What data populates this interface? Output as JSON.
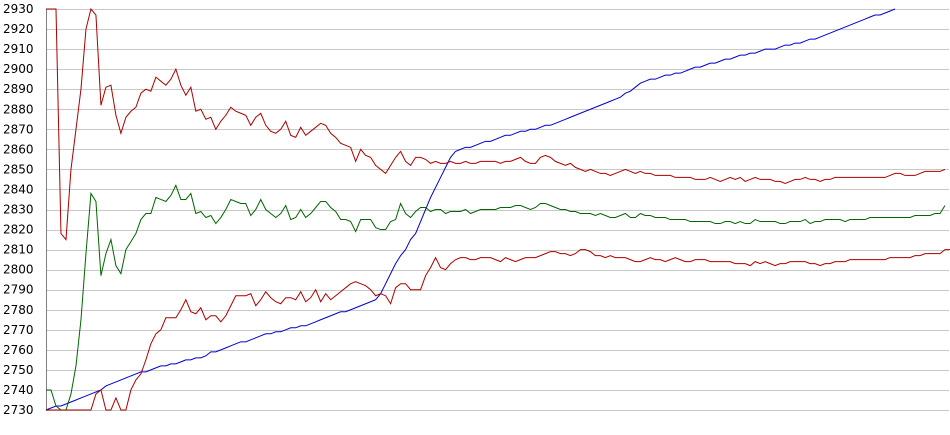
{
  "chart_data": {
    "type": "line",
    "title": "",
    "xlabel": "",
    "ylabel": "",
    "ylim": [
      2730,
      2930
    ],
    "xlim": [
      0,
      180
    ],
    "grid": true,
    "legend": "none",
    "y_ticks": [
      2730,
      2740,
      2750,
      2760,
      2770,
      2780,
      2790,
      2800,
      2810,
      2820,
      2830,
      2840,
      2850,
      2860,
      2870,
      2880,
      2890,
      2900,
      2910,
      2920,
      2930
    ],
    "series": [
      {
        "color": "#0000cc",
        "values": [
          2730,
          2731,
          2732,
          2732,
          2733,
          2734,
          2735,
          2736,
          2737,
          2738,
          2739,
          2740,
          2742,
          2743,
          2744,
          2745,
          2746,
          2747,
          2748,
          2749,
          2749,
          2750,
          2751,
          2752,
          2752,
          2753,
          2753,
          2754,
          2755,
          2755,
          2756,
          2756,
          2757,
          2759,
          2759,
          2760,
          2761,
          2762,
          2763,
          2764,
          2764,
          2765,
          2766,
          2767,
          2768,
          2768,
          2769,
          2769,
          2770,
          2771,
          2771,
          2772,
          2772,
          2773,
          2774,
          2775,
          2776,
          2777,
          2778,
          2779,
          2779,
          2780,
          2781,
          2782,
          2783,
          2784,
          2785,
          2788,
          2793,
          2798,
          2803,
          2807,
          2810,
          2815,
          2818,
          2824,
          2830,
          2836,
          2841,
          2846,
          2851,
          2856,
          2859,
          2860,
          2861,
          2861,
          2862,
          2863,
          2864,
          2864,
          2865,
          2866,
          2867,
          2867,
          2868,
          2869,
          2869,
          2870,
          2870,
          2871,
          2872,
          2872,
          2873,
          2874,
          2875,
          2876,
          2877,
          2878,
          2879,
          2880,
          2881,
          2882,
          2883,
          2884,
          2885,
          2886,
          2888,
          2889,
          2891,
          2893,
          2894,
          2895,
          2895,
          2896,
          2897,
          2897,
          2898,
          2898,
          2899,
          2900,
          2901,
          2901,
          2902,
          2903,
          2903,
          2904,
          2905,
          2905,
          2906,
          2907,
          2907,
          2908,
          2908,
          2909,
          2910,
          2910,
          2910,
          2911,
          2912,
          2912,
          2913,
          2913,
          2914,
          2915,
          2915,
          2916,
          2917,
          2918,
          2919,
          2920,
          2921,
          2922,
          2923,
          2924,
          2925,
          2926,
          2927,
          2927,
          2928,
          2929,
          2930
        ]
      },
      {
        "color": "#006600",
        "values": [
          2740,
          2740,
          2732,
          2730,
          2730,
          2738,
          2752,
          2775,
          2808,
          2838,
          2834,
          2797,
          2808,
          2815,
          2802,
          2798,
          2810,
          2814,
          2818,
          2825,
          2828,
          2828,
          2836,
          2835,
          2834,
          2837,
          2842,
          2835,
          2835,
          2838,
          2828,
          2829,
          2826,
          2827,
          2823,
          2826,
          2830,
          2835,
          2834,
          2833,
          2833,
          2827,
          2830,
          2835,
          2830,
          2828,
          2826,
          2828,
          2832,
          2825,
          2826,
          2830,
          2826,
          2828,
          2831,
          2834,
          2834,
          2831,
          2829,
          2825,
          2825,
          2824,
          2819,
          2825,
          2825,
          2825,
          2821,
          2820,
          2820,
          2824,
          2825,
          2833,
          2828,
          2826,
          2829,
          2831,
          2831,
          2829,
          2830,
          2830,
          2828,
          2829,
          2829,
          2829,
          2830,
          2828,
          2829,
          2830,
          2830,
          2830,
          2830,
          2831,
          2831,
          2831,
          2832,
          2832,
          2831,
          2830,
          2831,
          2833,
          2833,
          2832,
          2831,
          2830,
          2830,
          2829,
          2829,
          2828,
          2828,
          2828,
          2827,
          2828,
          2827,
          2826,
          2826,
          2827,
          2828,
          2826,
          2826,
          2828,
          2827,
          2827,
          2826,
          2826,
          2826,
          2825,
          2825,
          2825,
          2825,
          2824,
          2824,
          2824,
          2824,
          2824,
          2823,
          2823,
          2824,
          2824,
          2823,
          2824,
          2823,
          2823,
          2825,
          2824,
          2824,
          2824,
          2824,
          2823,
          2823,
          2824,
          2824,
          2824,
          2825,
          2823,
          2824,
          2824,
          2825,
          2825,
          2825,
          2825,
          2824,
          2825,
          2825,
          2825,
          2825,
          2826,
          2826,
          2826,
          2826,
          2826,
          2826,
          2826,
          2826,
          2826,
          2827,
          2827,
          2827,
          2827,
          2828,
          2828,
          2832
        ]
      },
      {
        "color": "#aa0000",
        "values": [
          2930,
          2930,
          2930,
          2818,
          2815,
          2850,
          2870,
          2890,
          2920,
          2930,
          2927,
          2882,
          2891,
          2892,
          2877,
          2868,
          2876,
          2879,
          2881,
          2888,
          2890,
          2889,
          2896,
          2894,
          2892,
          2895,
          2900,
          2892,
          2887,
          2891,
          2879,
          2880,
          2875,
          2876,
          2870,
          2874,
          2877,
          2881,
          2879,
          2878,
          2877,
          2872,
          2876,
          2878,
          2872,
          2869,
          2868,
          2870,
          2874,
          2867,
          2866,
          2871,
          2867,
          2869,
          2871,
          2873,
          2872,
          2868,
          2866,
          2863,
          2862,
          2861,
          2854,
          2860,
          2857,
          2856,
          2852,
          2850,
          2848,
          2852,
          2856,
          2859,
          2854,
          2852,
          2856,
          2856,
          2855,
          2853,
          2854,
          2853,
          2853,
          2854,
          2853,
          2853,
          2854,
          2853,
          2853,
          2854,
          2854,
          2854,
          2854,
          2853,
          2854,
          2854,
          2855,
          2856,
          2854,
          2853,
          2853,
          2856,
          2857,
          2856,
          2854,
          2853,
          2852,
          2853,
          2851,
          2850,
          2849,
          2850,
          2849,
          2848,
          2848,
          2847,
          2848,
          2849,
          2850,
          2849,
          2848,
          2849,
          2848,
          2848,
          2847,
          2847,
          2847,
          2847,
          2846,
          2846,
          2846,
          2846,
          2845,
          2845,
          2845,
          2846,
          2845,
          2844,
          2845,
          2846,
          2845,
          2846,
          2844,
          2845,
          2846,
          2845,
          2845,
          2845,
          2844,
          2844,
          2843,
          2844,
          2845,
          2845,
          2846,
          2845,
          2845,
          2844,
          2845,
          2845,
          2846,
          2846,
          2846,
          2846,
          2846,
          2846,
          2846,
          2846,
          2846,
          2846,
          2846,
          2847,
          2848,
          2848,
          2847,
          2847,
          2847,
          2848,
          2849,
          2849,
          2849,
          2849,
          2850
        ]
      },
      {
        "color": "#aa0000",
        "values": [
          2730,
          2730,
          2730,
          2730,
          2730,
          2730,
          2730,
          2730,
          2730,
          2730,
          2738,
          2740,
          2730,
          2730,
          2736,
          2730,
          2730,
          2740,
          2745,
          2748,
          2755,
          2763,
          2768,
          2770,
          2776,
          2776,
          2776,
          2780,
          2785,
          2779,
          2778,
          2781,
          2775,
          2777,
          2777,
          2774,
          2777,
          2782,
          2787,
          2787,
          2787,
          2788,
          2782,
          2785,
          2789,
          2786,
          2784,
          2783,
          2786,
          2786,
          2785,
          2789,
          2784,
          2786,
          2790,
          2784,
          2788,
          2785,
          2787,
          2789,
          2791,
          2793,
          2794,
          2793,
          2792,
          2790,
          2787,
          2788,
          2787,
          2783,
          2791,
          2793,
          2793,
          2790,
          2790,
          2790,
          2797,
          2801,
          2806,
          2801,
          2800,
          2803,
          2805,
          2806,
          2806,
          2805,
          2805,
          2806,
          2806,
          2806,
          2805,
          2804,
          2806,
          2805,
          2804,
          2805,
          2806,
          2806,
          2806,
          2807,
          2808,
          2809,
          2809,
          2808,
          2808,
          2807,
          2808,
          2810,
          2810,
          2809,
          2807,
          2807,
          2806,
          2807,
          2806,
          2806,
          2806,
          2805,
          2804,
          2804,
          2805,
          2806,
          2805,
          2805,
          2804,
          2805,
          2806,
          2805,
          2804,
          2804,
          2805,
          2805,
          2805,
          2804,
          2804,
          2804,
          2804,
          2804,
          2803,
          2803,
          2803,
          2802,
          2804,
          2803,
          2804,
          2803,
          2802,
          2803,
          2803,
          2804,
          2804,
          2804,
          2804,
          2803,
          2803,
          2802,
          2803,
          2803,
          2804,
          2804,
          2804,
          2805,
          2805,
          2805,
          2805,
          2805,
          2805,
          2805,
          2805,
          2806,
          2806,
          2806,
          2806,
          2806,
          2807,
          2807,
          2808,
          2808,
          2808,
          2808,
          2810,
          2810,
          2810,
          2815
        ]
      }
    ]
  }
}
